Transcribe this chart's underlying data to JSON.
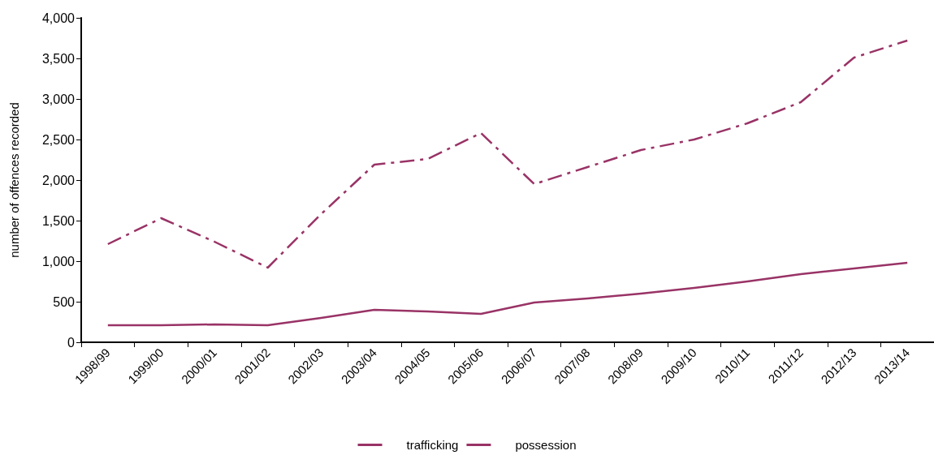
{
  "chart_data": {
    "type": "line",
    "ylabel": "number of offences recorded",
    "categories": [
      "1998/99",
      "1999/00",
      "2000/01",
      "2001/02",
      "2002/03",
      "2003/04",
      "2004/05",
      "2005/06",
      "2006/07",
      "2007/08",
      "2008/09",
      "2009/10",
      "2010/11",
      "2011/12",
      "2012/13",
      "2013/14"
    ],
    "series": [
      {
        "name": "trafficking",
        "color": "#993366",
        "line_style": "solid",
        "values": [
          210,
          210,
          220,
          210,
          300,
          400,
          380,
          350,
          490,
          540,
          600,
          670,
          750,
          840,
          910,
          980
        ]
      },
      {
        "name": "possession",
        "color": "#993366",
        "line_style": "dashdot",
        "values": [
          1210,
          1530,
          1240,
          920,
          1580,
          2190,
          2260,
          2580,
          1950,
          2160,
          2370,
          2500,
          2700,
          2960,
          3510,
          3720
        ]
      }
    ],
    "ylim": [
      0,
      4000
    ],
    "yticks": [
      0,
      500,
      {
        "value": 1000,
        "label": "1,000"
      },
      {
        "value": 1500,
        "label": "1,500"
      },
      {
        "value": 2000,
        "label": "2,000"
      },
      {
        "value": 2500,
        "label": "2,500"
      },
      {
        "value": 3000,
        "label": "3,000"
      },
      {
        "value": 3500,
        "label": "3,500"
      },
      {
        "value": 4000,
        "label": "4,000"
      }
    ],
    "grid": false,
    "legend": "bottom",
    "marker": "none"
  }
}
